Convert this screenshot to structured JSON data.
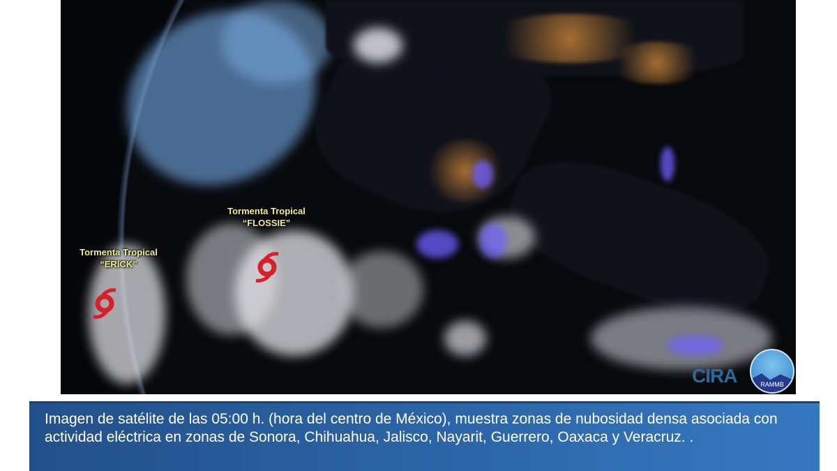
{
  "image": {
    "storms": [
      {
        "type_label": "Tormenta Tropical",
        "name": "“ERICK”",
        "icon": "hurricane-symbol-icon"
      },
      {
        "type_label": "Tormenta Tropical",
        "name": "“FLOSSIE”",
        "icon": "hurricane-symbol-icon"
      }
    ],
    "logos": {
      "cira": "CIRA",
      "rammb": "RAMMB"
    },
    "colors": {
      "storm_label": "#f2f08a",
      "storm_symbol": "#d8202a",
      "lightning": "#6a5cff"
    }
  },
  "caption": {
    "text": "Imagen de satélite de las 05:00 h. (hora del centro de México), muestra zonas de nubosidad densa asociada con actividad eléctrica en zonas de Sonora, Chihuahua, Jalisco, Nayarit, Guerrero, Oaxaca y Veracruz. .",
    "background": "#2c66a8"
  }
}
